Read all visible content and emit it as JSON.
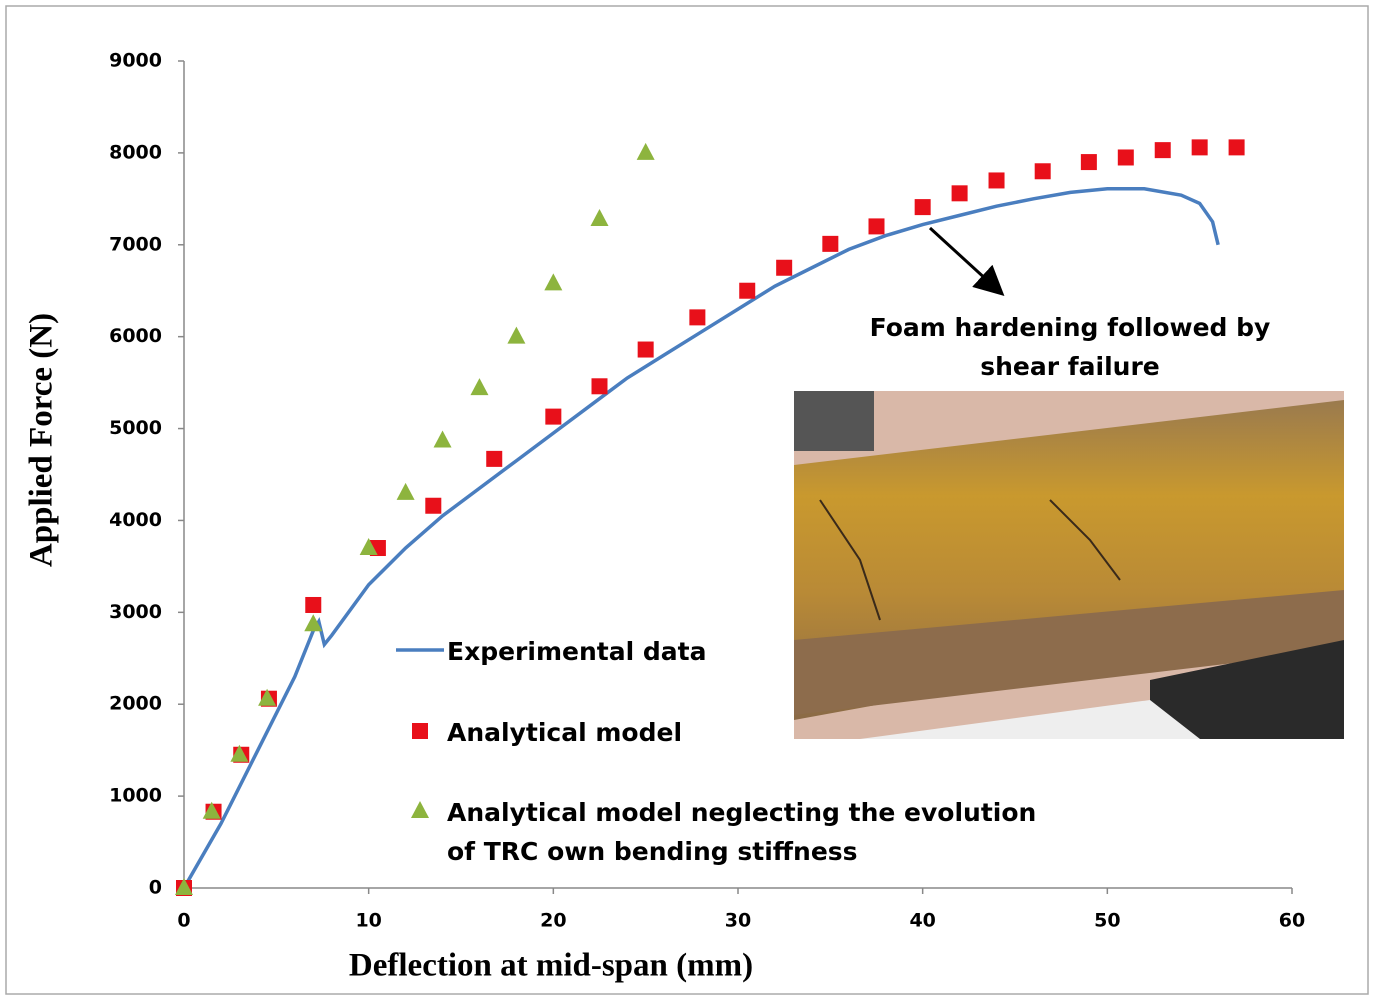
{
  "chart_data": {
    "type": "line",
    "x_label": "Deflection at mid-span (mm)",
    "y_label": "Applied Force (N)",
    "annotation": "Foam hardening followed by shear failure",
    "xlim": [
      0,
      60
    ],
    "xticks": [
      0,
      10,
      20,
      30,
      40,
      50,
      60
    ],
    "ylim": [
      0,
      9000
    ],
    "yticks": [
      0,
      1000,
      2000,
      3000,
      4000,
      5000,
      6000,
      7000,
      8000,
      9000
    ],
    "grid": false,
    "series": [
      {
        "name": "Experimental data",
        "color": "#4a7ebf",
        "marker": "line",
        "x": [
          0,
          2,
          4,
          6,
          7,
          7.3,
          7.6,
          8,
          10,
          12,
          14,
          16,
          18,
          20,
          22,
          24,
          26,
          28,
          30,
          32,
          34,
          36,
          38,
          40,
          42,
          44,
          46,
          48,
          50,
          52,
          54,
          55,
          55.7,
          56
        ],
        "values": [
          0,
          700,
          1500,
          2300,
          2800,
          2900,
          2650,
          2750,
          3300,
          3700,
          4050,
          4350,
          4650,
          4950,
          5250,
          5550,
          5800,
          6050,
          6300,
          6550,
          6750,
          6950,
          7100,
          7220,
          7320,
          7420,
          7500,
          7570,
          7610,
          7610,
          7540,
          7450,
          7250,
          7000
        ]
      },
      {
        "name": "Analytical model",
        "color": "#e8101a",
        "marker": "square",
        "x": [
          0,
          1.6,
          3.1,
          4.6,
          7,
          10.5,
          13.5,
          16.8,
          20,
          22.5,
          25,
          27.8,
          30.5,
          32.5,
          35,
          37.5,
          40,
          42,
          44,
          46.5,
          49,
          51,
          53,
          55,
          57
        ],
        "values": [
          0,
          830,
          1450,
          2060,
          3080,
          3700,
          4160,
          4670,
          5130,
          5460,
          5860,
          6210,
          6500,
          6750,
          7010,
          7200,
          7410,
          7560,
          7700,
          7800,
          7900,
          7950,
          8030,
          8060,
          8060
        ]
      },
      {
        "name": "Analytical model neglecting the evolution of TRC own bending stiffness",
        "color": "#8db43e",
        "marker": "triangle",
        "x": [
          0,
          1.5,
          3,
          4.5,
          7,
          10,
          12,
          14,
          16,
          18,
          20,
          22.5,
          25
        ],
        "values": [
          0,
          830,
          1450,
          2060,
          2870,
          3700,
          4300,
          4870,
          5440,
          6000,
          6580,
          7280,
          8000
        ]
      }
    ]
  }
}
